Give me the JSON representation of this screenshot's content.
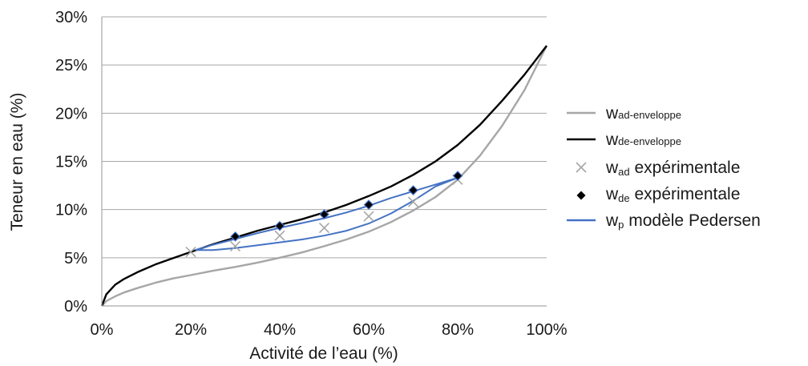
{
  "chart_data": {
    "type": "line",
    "xlabel": "Activité de l’eau (%)",
    "ylabel": "Teneur en eau (%)",
    "xlim": [
      0,
      100
    ],
    "ylim": [
      0,
      30
    ],
    "x_ticks": [
      "0%",
      "20%",
      "40%",
      "60%",
      "80%",
      "100%"
    ],
    "y_ticks": [
      "0%",
      "5%",
      "10%",
      "15%",
      "20%",
      "25%",
      "30%"
    ],
    "grid": "horizontal",
    "legend_position": "right",
    "series": [
      {
        "key": "wad_env",
        "legend_main": "w",
        "legend_sub": "ad-enveloppe",
        "legend_rest": "",
        "kind": "line",
        "color": "#a6a6a6",
        "x": [
          0,
          1,
          3,
          5,
          8,
          12,
          16,
          20,
          25,
          30,
          35,
          40,
          45,
          50,
          55,
          60,
          65,
          70,
          75,
          80,
          85,
          90,
          95,
          100
        ],
        "y": [
          0,
          0.5,
          1.0,
          1.4,
          1.85,
          2.4,
          2.85,
          3.2,
          3.65,
          4.05,
          4.5,
          5.0,
          5.55,
          6.2,
          6.9,
          7.7,
          8.7,
          9.9,
          11.3,
          13.1,
          15.6,
          18.7,
          22.4,
          27.0
        ]
      },
      {
        "key": "wde_env",
        "legend_main": "w",
        "legend_sub": "de-enveloppe",
        "legend_rest": "",
        "kind": "line",
        "color": "#000000",
        "x": [
          0,
          1,
          3,
          5,
          8,
          12,
          16,
          20,
          25,
          30,
          35,
          40,
          45,
          50,
          55,
          60,
          65,
          70,
          75,
          80,
          85,
          90,
          95,
          100
        ],
        "y": [
          0,
          1.2,
          2.2,
          2.8,
          3.5,
          4.3,
          4.95,
          5.6,
          6.4,
          7.1,
          7.8,
          8.4,
          9.0,
          9.7,
          10.5,
          11.4,
          12.4,
          13.6,
          15.0,
          16.7,
          18.8,
          21.3,
          24.0,
          27.0
        ]
      },
      {
        "key": "wad_exp",
        "legend_main": "w",
        "legend_sub": "ad",
        "legend_rest": " expérimentale",
        "kind": "marker-x",
        "color": "#a6a6a6",
        "x": [
          20,
          30,
          40,
          50,
          60,
          70,
          80
        ],
        "y": [
          5.6,
          6.2,
          7.3,
          8.1,
          9.3,
          10.8,
          13.1
        ]
      },
      {
        "key": "wde_exp",
        "legend_main": "w",
        "legend_sub": "de",
        "legend_rest": " expérimentale",
        "kind": "marker-diamond",
        "color": "#000000",
        "x": [
          30,
          40,
          50,
          60,
          70,
          80
        ],
        "y": [
          7.2,
          8.3,
          9.5,
          10.5,
          12.0,
          13.5
        ]
      },
      {
        "key": "wp_model",
        "legend_main": "w",
        "legend_sub": "p",
        "legend_rest": " modèle Pedersen",
        "kind": "line",
        "color": "#4472c4",
        "x": [
          21,
          25,
          30,
          35,
          40,
          45,
          50,
          55,
          60,
          65,
          70,
          75,
          80,
          75,
          70,
          65,
          60,
          55,
          50,
          45,
          40,
          35,
          30,
          25,
          21
        ],
        "y": [
          5.8,
          6.35,
          6.95,
          7.55,
          8.1,
          8.6,
          9.1,
          9.7,
          10.4,
          11.2,
          11.9,
          12.6,
          13.3,
          12.4,
          10.9,
          9.6,
          8.55,
          7.8,
          7.3,
          6.9,
          6.6,
          6.3,
          6.0,
          5.8,
          5.8
        ]
      }
    ]
  }
}
